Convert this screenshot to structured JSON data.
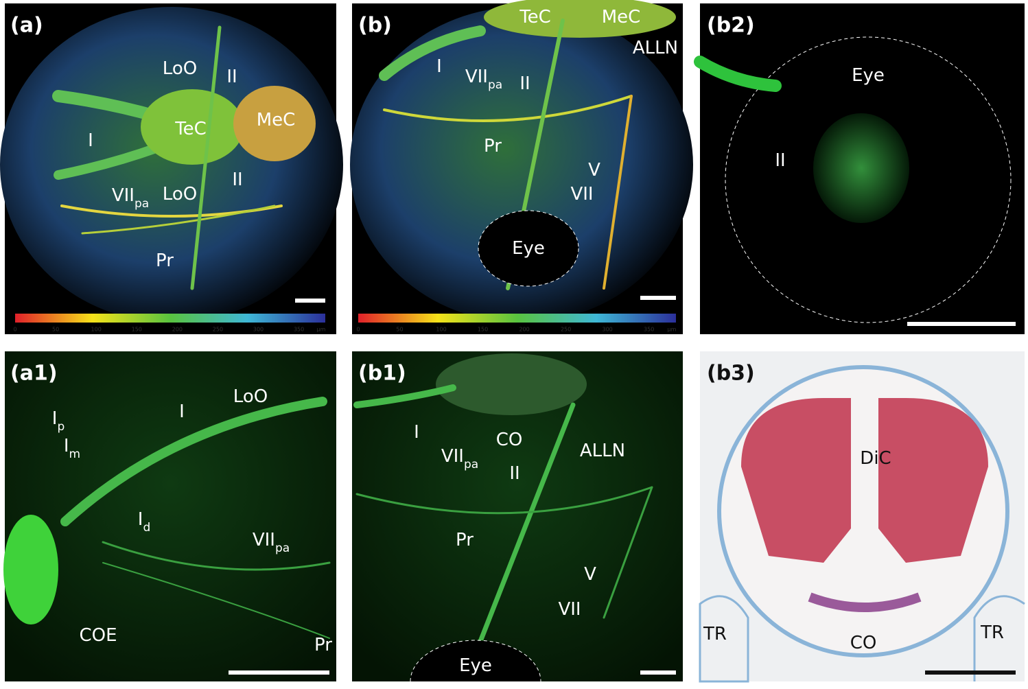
{
  "panels": [
    {
      "label": "(a)",
      "annotations": [
        {
          "text": "LoO"
        },
        {
          "text": "II"
        },
        {
          "text": "TeC"
        },
        {
          "text": "MeC"
        },
        {
          "text": "I"
        },
        {
          "text": "LoO"
        },
        {
          "text": "II"
        },
        {
          "text": "VII",
          "sub": "pa"
        },
        {
          "text": "Pr"
        }
      ],
      "colorbar": {
        "ticks": [
          0,
          50,
          100,
          150,
          200,
          250,
          300,
          350
        ],
        "unit": "µm"
      }
    },
    {
      "label": "(b)",
      "annotations": [
        {
          "text": "TeC"
        },
        {
          "text": "MeC"
        },
        {
          "text": "ALLN"
        },
        {
          "text": "I"
        },
        {
          "text": "VII",
          "sub": "pa"
        },
        {
          "text": "II"
        },
        {
          "text": "Pr"
        },
        {
          "text": "V"
        },
        {
          "text": "VII"
        },
        {
          "text": "Eye"
        }
      ],
      "colorbar": {
        "ticks": [
          0,
          50,
          100,
          150,
          200,
          250,
          300,
          350
        ],
        "unit": "µm"
      }
    },
    {
      "label": "(b2)",
      "annotations": [
        {
          "text": "Eye"
        },
        {
          "text": "II"
        }
      ]
    },
    {
      "label": "(a1)",
      "annotations": [
        {
          "text": "LoO"
        },
        {
          "text": "I"
        },
        {
          "text": "I",
          "sub": "p"
        },
        {
          "text": "I",
          "sub": "m"
        },
        {
          "text": "I",
          "sub": "d"
        },
        {
          "text": "VII",
          "sub": "pa"
        },
        {
          "text": "COE"
        },
        {
          "text": "Pr"
        }
      ]
    },
    {
      "label": "(b1)",
      "annotations": [
        {
          "text": "I"
        },
        {
          "text": "CO"
        },
        {
          "text": "ALLN"
        },
        {
          "text": "VII",
          "sub": "pa"
        },
        {
          "text": "II"
        },
        {
          "text": "Pr"
        },
        {
          "text": "V"
        },
        {
          "text": "VII"
        },
        {
          "text": "Eye"
        }
      ]
    },
    {
      "label": "(b3)",
      "annotations": [
        {
          "text": "DiC"
        },
        {
          "text": "TR"
        },
        {
          "text": "CO"
        },
        {
          "text": "TR"
        }
      ]
    }
  ]
}
